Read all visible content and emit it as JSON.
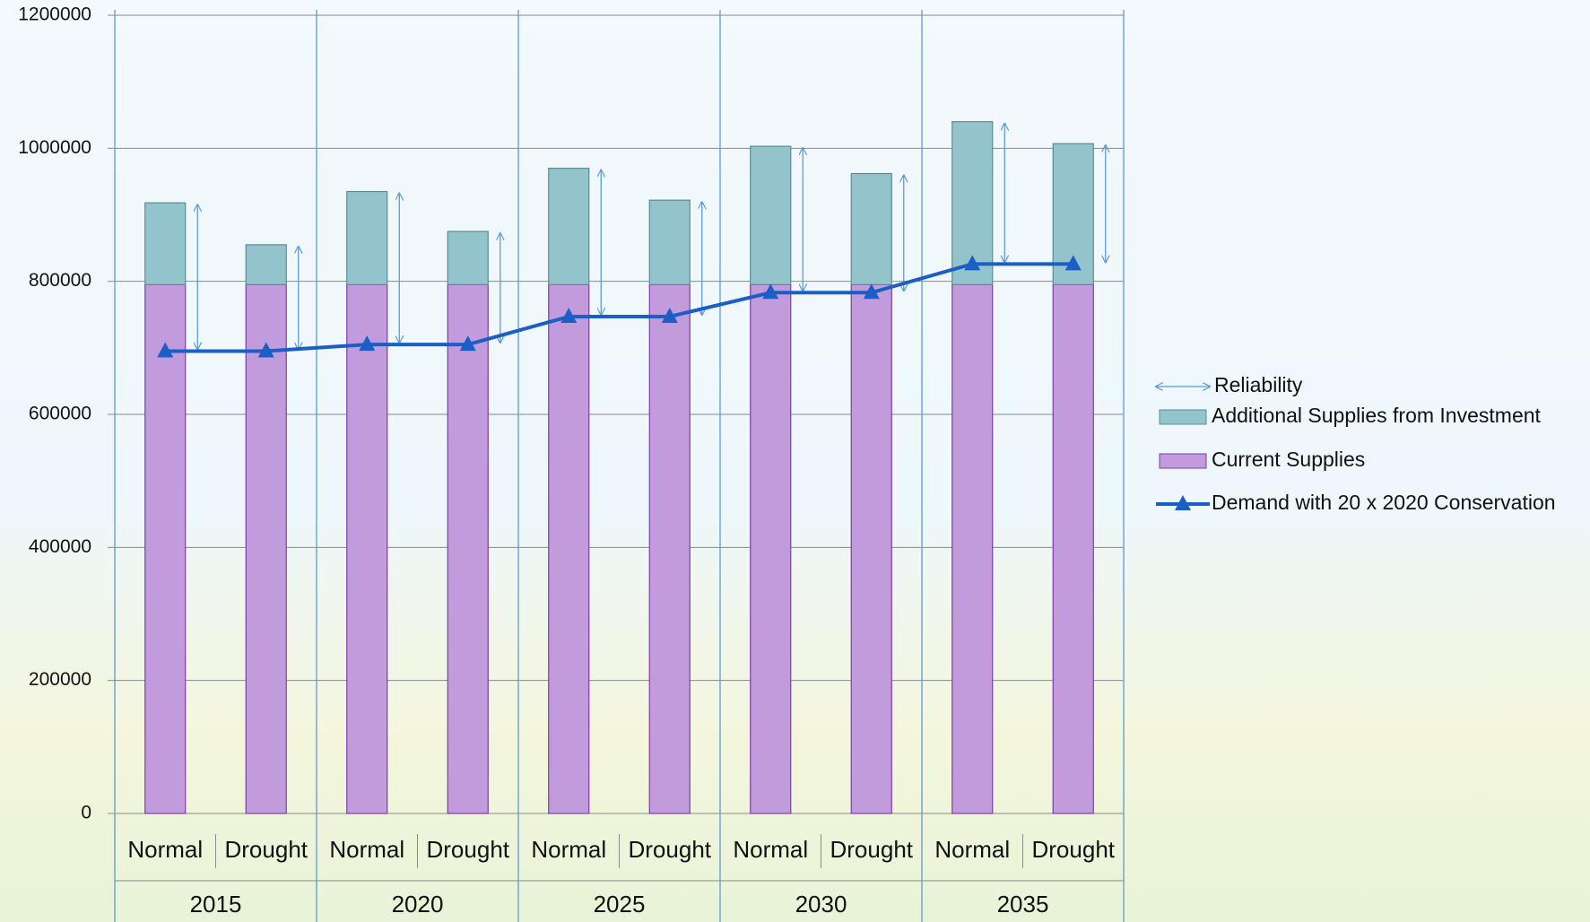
{
  "chart_data": {
    "type": "bar",
    "categories": [
      "Normal",
      "Drought",
      "Normal",
      "Drought",
      "Normal",
      "Drought",
      "Normal",
      "Drought",
      "Normal",
      "Drought"
    ],
    "groups": [
      "2015",
      "2020",
      "2025",
      "2030",
      "2035"
    ],
    "series": [
      {
        "name": "Current Supplies",
        "color": "#c29bdc",
        "values": [
          795000,
          795000,
          795000,
          795000,
          795000,
          795000,
          795000,
          795000,
          795000,
          795000
        ]
      },
      {
        "name": "Additional Supplies from Investment",
        "color": "#93c4cb",
        "values": [
          123000,
          60000,
          140000,
          80000,
          175000,
          127000,
          208000,
          167000,
          245000,
          212000
        ]
      },
      {
        "name": "Demand with 20 x 2020 Conservation",
        "type": "line",
        "color": "#1a5ec6",
        "values": [
          695000,
          695000,
          705000,
          705000,
          747000,
          747000,
          783000,
          783000,
          826000,
          826000
        ]
      }
    ],
    "reliability_label": "Reliability",
    "ylim": [
      0,
      1200000
    ],
    "yticks": [
      0,
      200000,
      400000,
      600000,
      800000,
      1000000,
      1200000
    ],
    "grid": true,
    "legend": "right"
  }
}
